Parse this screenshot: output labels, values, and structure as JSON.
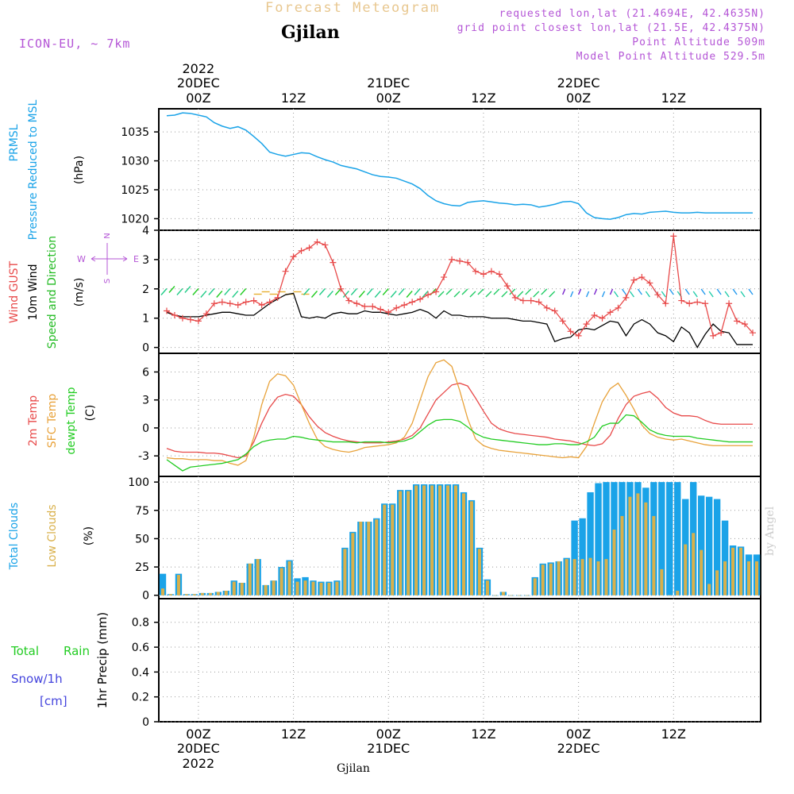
{
  "header": {
    "title": "Forecast Meteogram",
    "location": "Gjilan",
    "model": "ICON-EU, ~ 7km",
    "requested": "requested lon,lat (21.4694E, 42.4635N)",
    "gridpoint": "grid point closest lon,lat (21.5E, 42.4375N)",
    "point_alt": "Point Altitude 509m",
    "model_alt": "Model Point Altitude 529.5m",
    "footer_location": "Gjilan",
    "byline": "by Angel"
  },
  "time_axis": {
    "top_labels": [
      {
        "line1": "2022",
        "line2": "20DEC",
        "line3": "00Z",
        "h": 0
      },
      {
        "line1": "",
        "line2": "",
        "line3": "12Z",
        "h": 12
      },
      {
        "line1": "",
        "line2": "21DEC",
        "line3": "00Z",
        "h": 24
      },
      {
        "line1": "",
        "line2": "",
        "line3": "12Z",
        "h": 36
      },
      {
        "line1": "",
        "line2": "22DEC",
        "line3": "00Z",
        "h": 48
      },
      {
        "line1": "",
        "line2": "",
        "line3": "12Z",
        "h": 60
      }
    ],
    "bottom_labels": [
      {
        "line1": "00Z",
        "line2": "20DEC",
        "line3": "2022",
        "h": 0
      },
      {
        "line1": "12Z",
        "line2": "",
        "line3": "",
        "h": 12
      },
      {
        "line1": "00Z",
        "line2": "21DEC",
        "line3": "",
        "h": 24
      },
      {
        "line1": "12Z",
        "line2": "",
        "line3": "",
        "h": 36
      },
      {
        "line1": "00Z",
        "line2": "22DEC",
        "line3": "",
        "h": 48
      },
      {
        "line1": "12Z",
        "line2": "",
        "line3": "",
        "h": 60
      }
    ],
    "range_hours": [
      -5,
      71
    ]
  },
  "panels": {
    "pressure": {
      "labels": [
        "PRMSL",
        "Pressure Reduced to MSL"
      ],
      "unit": "(hPa)",
      "color": "#1aa3e8"
    },
    "wind": {
      "labels": [
        "Wind GUST",
        "10m Wind",
        "Speed and Direction"
      ],
      "label_colors": [
        "#e84a4a",
        "#000000",
        "#22bb22"
      ],
      "unit": "(m/s)",
      "compass": {
        "n": "N",
        "s": "S",
        "w": "W",
        "e": "E"
      }
    },
    "temp": {
      "labels": [
        "2m Temp",
        "SFC Temp",
        "dewpt Temp"
      ],
      "label_colors": [
        "#e84a4a",
        "#e8a23a",
        "#22cc22"
      ],
      "unit": "(C)"
    },
    "clouds": {
      "labels": [
        "Total Clouds",
        "Low Clouds"
      ],
      "label_colors": [
        "#1aa3e8",
        "#d9b04a"
      ],
      "unit": "(%)"
    },
    "precip": {
      "label_total": "Total",
      "label_rain": "Rain",
      "label_snow": "Snow/1h",
      "label_cm": "[cm]",
      "ylabel": "1hr Precip (mm)"
    }
  },
  "chart_data": [
    {
      "type": "line",
      "name": "PRMSL",
      "ylabel": "(hPa)",
      "ylim": [
        1018,
        1039
      ],
      "yticks": [
        1020,
        1025,
        1030,
        1035
      ],
      "x": [
        -4,
        -3,
        -2,
        -1,
        0,
        1,
        2,
        3,
        4,
        5,
        6,
        7,
        8,
        9,
        10,
        11,
        12,
        13,
        14,
        15,
        16,
        17,
        18,
        19,
        20,
        21,
        22,
        23,
        24,
        25,
        26,
        27,
        28,
        29,
        30,
        31,
        32,
        33,
        34,
        35,
        36,
        37,
        38,
        39,
        40,
        41,
        42,
        43,
        44,
        45,
        46,
        47,
        48,
        49,
        50,
        51,
        52,
        53,
        54,
        55,
        56,
        57,
        58,
        59,
        60,
        61,
        62,
        63,
        64,
        65,
        66,
        67,
        68,
        69,
        70
      ],
      "y": [
        1037.8,
        1037.9,
        1038.3,
        1038.2,
        1037.9,
        1037.6,
        1036.6,
        1036.0,
        1035.6,
        1035.9,
        1035.3,
        1034.2,
        1033.0,
        1031.5,
        1031.1,
        1030.8,
        1031.1,
        1031.4,
        1031.3,
        1030.7,
        1030.2,
        1029.8,
        1029.2,
        1028.9,
        1028.6,
        1028.1,
        1027.6,
        1027.3,
        1027.2,
        1027.0,
        1026.5,
        1026.0,
        1025.2,
        1024.0,
        1023.1,
        1022.6,
        1022.3,
        1022.2,
        1022.8,
        1023.0,
        1023.1,
        1022.9,
        1022.7,
        1022.6,
        1022.4,
        1022.5,
        1022.4,
        1022.0,
        1022.2,
        1022.5,
        1022.9,
        1023.0,
        1022.6,
        1021.0,
        1020.2,
        1020.0,
        1019.9,
        1020.2,
        1020.7,
        1020.9,
        1020.8,
        1021.1,
        1021.2,
        1021.3,
        1021.1,
        1021.0,
        1021.0,
        1021.1,
        1021.0,
        1021.0,
        1021.0,
        1021.0,
        1021.0,
        1021.0,
        1021.0
      ]
    },
    {
      "type": "line",
      "name": "Wind GUST / 10m Wind",
      "ylabel": "(m/s)",
      "ylim": [
        -0.2,
        4.0
      ],
      "yticks": [
        0,
        1,
        2,
        3,
        4
      ],
      "x": [
        -4,
        -3,
        -2,
        -1,
        0,
        1,
        2,
        3,
        4,
        5,
        6,
        7,
        8,
        9,
        10,
        11,
        12,
        13,
        14,
        15,
        16,
        17,
        18,
        19,
        20,
        21,
        22,
        23,
        24,
        25,
        26,
        27,
        28,
        29,
        30,
        31,
        32,
        33,
        34,
        35,
        36,
        37,
        38,
        39,
        40,
        41,
        42,
        43,
        44,
        45,
        46,
        47,
        48,
        49,
        50,
        51,
        52,
        53,
        54,
        55,
        56,
        57,
        58,
        59,
        60,
        61,
        62,
        63,
        64,
        65,
        66,
        67,
        68,
        69,
        70
      ],
      "series": [
        {
          "name": "Wind GUST",
          "color": "#e84a4a",
          "values": [
            1.25,
            1.1,
            1.0,
            0.95,
            0.9,
            1.15,
            1.5,
            1.55,
            1.5,
            1.45,
            1.55,
            1.6,
            1.45,
            1.55,
            1.7,
            2.6,
            3.1,
            3.3,
            3.4,
            3.6,
            3.5,
            2.9,
            2.0,
            1.6,
            1.5,
            1.4,
            1.4,
            1.3,
            1.2,
            1.35,
            1.45,
            1.55,
            1.65,
            1.8,
            1.9,
            2.4,
            3.0,
            2.95,
            2.9,
            2.6,
            2.5,
            2.6,
            2.5,
            2.1,
            1.7,
            1.6,
            1.6,
            1.55,
            1.35,
            1.25,
            0.9,
            0.55,
            0.4,
            0.8,
            1.1,
            1.0,
            1.2,
            1.35,
            1.7,
            2.3,
            2.4,
            2.2,
            1.8,
            1.5,
            3.8,
            1.6,
            1.5,
            1.55,
            1.5,
            0.4,
            0.5,
            1.5,
            0.9,
            0.8,
            0.5
          ]
        },
        {
          "name": "10m Wind",
          "color": "#000000",
          "values": [
            1.2,
            1.1,
            1.05,
            1.05,
            1.05,
            1.1,
            1.15,
            1.2,
            1.2,
            1.15,
            1.1,
            1.1,
            1.3,
            1.5,
            1.65,
            1.8,
            1.85,
            1.05,
            1.0,
            1.05,
            1.0,
            1.15,
            1.2,
            1.15,
            1.15,
            1.25,
            1.2,
            1.2,
            1.15,
            1.1,
            1.15,
            1.2,
            1.3,
            1.2,
            1.0,
            1.25,
            1.1,
            1.1,
            1.05,
            1.05,
            1.05,
            1.0,
            1.0,
            1.0,
            0.95,
            0.9,
            0.9,
            0.85,
            0.8,
            0.2,
            0.3,
            0.35,
            0.6,
            0.65,
            0.6,
            0.75,
            0.9,
            0.85,
            0.4,
            0.8,
            0.95,
            0.8,
            0.5,
            0.4,
            0.2,
            0.7,
            0.5,
            0.0,
            0.45,
            0.8,
            0.55,
            0.5,
            0.1,
            0.1,
            0.1
          ]
        }
      ]
    },
    {
      "type": "line",
      "name": "Temperatures",
      "ylabel": "(C)",
      "ylim": [
        -5.2,
        8.0
      ],
      "yticks": [
        -3,
        0,
        3,
        6
      ],
      "x": [
        -4,
        -3,
        -2,
        -1,
        0,
        1,
        2,
        3,
        4,
        5,
        6,
        7,
        8,
        9,
        10,
        11,
        12,
        13,
        14,
        15,
        16,
        17,
        18,
        19,
        20,
        21,
        22,
        23,
        24,
        25,
        26,
        27,
        28,
        29,
        30,
        31,
        32,
        33,
        34,
        35,
        36,
        37,
        38,
        39,
        40,
        41,
        42,
        43,
        44,
        45,
        46,
        47,
        48,
        49,
        50,
        51,
        52,
        53,
        54,
        55,
        56,
        57,
        58,
        59,
        60,
        61,
        62,
        63,
        64,
        65,
        66,
        67,
        68,
        69,
        70
      ],
      "series": [
        {
          "name": "2m Temp",
          "color": "#e84a4a",
          "values": [
            -2.2,
            -2.5,
            -2.6,
            -2.6,
            -2.6,
            -2.7,
            -2.7,
            -2.8,
            -3.0,
            -3.2,
            -3.0,
            -1.5,
            0.5,
            2.2,
            3.3,
            3.6,
            3.4,
            2.5,
            1.2,
            0.2,
            -0.5,
            -0.9,
            -1.2,
            -1.4,
            -1.5,
            -1.6,
            -1.6,
            -1.6,
            -1.5,
            -1.4,
            -1.2,
            -0.8,
            0.0,
            1.5,
            3.0,
            3.8,
            4.6,
            4.8,
            4.5,
            3.2,
            1.8,
            0.5,
            -0.1,
            -0.4,
            -0.6,
            -0.7,
            -0.8,
            -0.9,
            -1.0,
            -1.2,
            -1.3,
            -1.4,
            -1.6,
            -1.8,
            -1.9,
            -1.7,
            -0.8,
            1.0,
            2.5,
            3.4,
            3.7,
            3.9,
            3.2,
            2.2,
            1.6,
            1.3,
            1.3,
            1.2,
            0.8,
            0.5,
            0.4,
            0.4,
            0.4,
            0.4,
            0.4
          ]
        },
        {
          "name": "SFC Temp",
          "color": "#e8a23a",
          "values": [
            -3.2,
            -3.3,
            -3.3,
            -3.4,
            -3.4,
            -3.4,
            -3.5,
            -3.5,
            -3.8,
            -4.0,
            -3.5,
            -1.0,
            2.5,
            5.0,
            5.8,
            5.6,
            4.6,
            2.5,
            0.5,
            -1.2,
            -2.0,
            -2.3,
            -2.5,
            -2.6,
            -2.4,
            -2.1,
            -2.0,
            -1.9,
            -1.8,
            -1.6,
            -1.0,
            0.5,
            3.0,
            5.5,
            7.0,
            7.3,
            6.6,
            4.0,
            1.0,
            -1.2,
            -1.9,
            -2.2,
            -2.4,
            -2.5,
            -2.6,
            -2.7,
            -2.8,
            -2.9,
            -3.0,
            -3.1,
            -3.2,
            -3.1,
            -3.2,
            -2.0,
            0.5,
            2.8,
            4.2,
            4.8,
            3.5,
            2.0,
            0.3,
            -0.6,
            -1.0,
            -1.2,
            -1.3,
            -1.2,
            -1.4,
            -1.6,
            -1.8,
            -1.9,
            -1.9,
            -1.9,
            -1.9,
            -1.9,
            -1.9
          ]
        },
        {
          "name": "dewpt Temp",
          "color": "#22cc22",
          "values": [
            -3.4,
            -4.0,
            -4.6,
            -4.2,
            -4.1,
            -4.0,
            -3.9,
            -3.8,
            -3.6,
            -3.4,
            -2.8,
            -2.0,
            -1.5,
            -1.3,
            -1.2,
            -1.2,
            -0.9,
            -1.0,
            -1.2,
            -1.3,
            -1.4,
            -1.5,
            -1.5,
            -1.5,
            -1.6,
            -1.5,
            -1.5,
            -1.5,
            -1.6,
            -1.5,
            -1.4,
            -1.1,
            -0.4,
            0.3,
            0.8,
            0.9,
            0.9,
            0.7,
            0.1,
            -0.6,
            -1.0,
            -1.2,
            -1.3,
            -1.4,
            -1.5,
            -1.6,
            -1.7,
            -1.8,
            -1.8,
            -1.7,
            -1.7,
            -1.8,
            -1.8,
            -1.5,
            -1.0,
            0.2,
            0.5,
            0.5,
            1.4,
            1.3,
            0.6,
            -0.2,
            -0.6,
            -0.8,
            -0.9,
            -0.9,
            -0.9,
            -1.1,
            -1.2,
            -1.3,
            -1.4,
            -1.5,
            -1.5,
            -1.5,
            -1.5
          ]
        }
      ]
    },
    {
      "type": "bar",
      "name": "Clouds",
      "ylabel": "(%)",
      "ylim": [
        -3,
        105
      ],
      "yticks": [
        0,
        25,
        50,
        75,
        100
      ],
      "x": [
        -5,
        -4,
        -3,
        -2,
        -1,
        0,
        1,
        2,
        3,
        4,
        5,
        6,
        7,
        8,
        9,
        10,
        11,
        12,
        13,
        14,
        15,
        16,
        17,
        18,
        19,
        20,
        21,
        22,
        23,
        24,
        25,
        26,
        27,
        28,
        29,
        30,
        31,
        32,
        33,
        34,
        35,
        36,
        37,
        38,
        39,
        40,
        41,
        42,
        43,
        44,
        45,
        46,
        47,
        48,
        49,
        50,
        51,
        52,
        53,
        54,
        55,
        56,
        57,
        58,
        59,
        60,
        61,
        62,
        63,
        64,
        65,
        66,
        67,
        68,
        69,
        70
      ],
      "series": [
        {
          "name": "Total Clouds",
          "color": "#1aa3e8",
          "values": [
            19,
            1,
            19,
            1,
            1,
            2,
            2,
            3,
            4,
            13,
            11,
            28,
            32,
            9,
            13,
            25,
            31,
            15,
            16,
            13,
            12,
            12,
            13,
            42,
            56,
            65,
            65,
            68,
            81,
            81,
            93,
            93,
            98,
            98,
            98,
            98,
            98,
            98,
            91,
            84,
            42,
            14,
            0,
            3,
            0,
            0,
            0,
            16,
            28,
            29,
            30,
            33,
            66,
            68,
            91,
            99,
            100,
            100,
            100,
            100,
            100,
            95,
            100,
            100,
            100,
            100,
            85,
            100,
            88,
            87,
            85,
            66,
            44,
            43,
            36,
            36
          ]
        },
        {
          "name": "Low Clouds",
          "color": "#d9b04a",
          "values": [
            6,
            1,
            18,
            1,
            1,
            2,
            2,
            3,
            4,
            12,
            11,
            28,
            32,
            9,
            13,
            24,
            30,
            12,
            13,
            12,
            11,
            11,
            12,
            41,
            55,
            65,
            65,
            67,
            80,
            80,
            92,
            92,
            97,
            97,
            97,
            97,
            97,
            97,
            90,
            83,
            41,
            13,
            0,
            3,
            0,
            0,
            0,
            15,
            27,
            28,
            30,
            32,
            32,
            32,
            33,
            30,
            32,
            58,
            70,
            87,
            90,
            82,
            70,
            23,
            0,
            4,
            45,
            55,
            40,
            10,
            22,
            30,
            42,
            42,
            30,
            30
          ]
        }
      ]
    },
    {
      "type": "line",
      "name": "1hr Precip",
      "ylabel": "1hr Precip (mm)",
      "ylim": [
        0,
        0.99
      ],
      "yticks": [
        0,
        0.2,
        0.4,
        0.6,
        0.8
      ],
      "series": []
    }
  ]
}
